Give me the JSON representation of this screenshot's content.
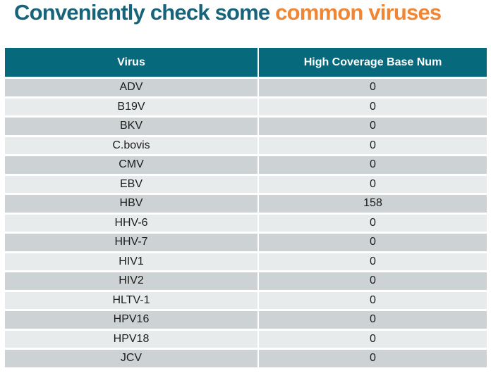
{
  "title": {
    "normal": "Conveniently check some ",
    "highlight": "common viruses"
  },
  "colors": {
    "title_teal": "#17647A",
    "title_orange": "#F08534",
    "header_bg": "#066A7C",
    "header_text": "#FFFFFF",
    "row_dark": "#CDD3D5",
    "row_light": "#E8EBEC",
    "cell_text": "#1B1B1B"
  },
  "table": {
    "columns": [
      "Virus",
      "High Coverage Base Num"
    ],
    "rows": [
      {
        "virus": "ADV",
        "value": "0"
      },
      {
        "virus": "B19V",
        "value": "0"
      },
      {
        "virus": "BKV",
        "value": "0"
      },
      {
        "virus": "C.bovis",
        "value": "0"
      },
      {
        "virus": "CMV",
        "value": "0"
      },
      {
        "virus": "EBV",
        "value": "0"
      },
      {
        "virus": "HBV",
        "value": "158"
      },
      {
        "virus": "HHV-6",
        "value": "0"
      },
      {
        "virus": "HHV-7",
        "value": "0"
      },
      {
        "virus": "HIV1",
        "value": "0"
      },
      {
        "virus": "HIV2",
        "value": "0"
      },
      {
        "virus": "HLTV-1",
        "value": "0"
      },
      {
        "virus": "HPV16",
        "value": "0"
      },
      {
        "virus": "HPV18",
        "value": "0"
      },
      {
        "virus": "JCV",
        "value": "0"
      }
    ]
  }
}
